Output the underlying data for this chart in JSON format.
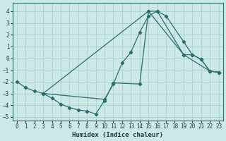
{
  "xlabel": "Humidex (Indice chaleur)",
  "background_color": "#cde8e8",
  "grid_color": "#b0d4cc",
  "line_color": "#2a6e6e",
  "xlim": [
    -0.5,
    23.5
  ],
  "ylim": [
    -5.3,
    4.7
  ],
  "xticks": [
    0,
    1,
    2,
    3,
    4,
    5,
    6,
    7,
    8,
    9,
    10,
    11,
    12,
    13,
    14,
    15,
    16,
    17,
    18,
    19,
    20,
    21,
    22,
    23
  ],
  "yticks": [
    -5,
    -4,
    -3,
    -2,
    -1,
    0,
    1,
    2,
    3,
    4
  ],
  "lines": [
    {
      "x": [
        0,
        1,
        2,
        3,
        10,
        11,
        12,
        13,
        14,
        15,
        16,
        17,
        19,
        20,
        21,
        22,
        23
      ],
      "y": [
        -2.0,
        -2.5,
        -2.8,
        -3.0,
        -3.5,
        -2.2,
        -0.4,
        0.5,
        2.2,
        3.6,
        4.0,
        3.6,
        1.4,
        0.3,
        -0.1,
        -1.1,
        -1.2
      ]
    },
    {
      "x": [
        3,
        4,
        5,
        6,
        7,
        8,
        9,
        10,
        11,
        14,
        15,
        16,
        19,
        20,
        21,
        22,
        23
      ],
      "y": [
        -3.0,
        -3.4,
        -3.9,
        -4.2,
        -4.4,
        -4.5,
        -4.75,
        -3.6,
        -2.1,
        -2.2,
        4.0,
        4.0,
        0.3,
        0.3,
        -0.1,
        -1.1,
        -1.2
      ]
    },
    {
      "x": [
        3,
        15,
        19,
        22,
        23
      ],
      "y": [
        -3.0,
        4.0,
        0.3,
        -1.1,
        -1.2
      ]
    }
  ]
}
